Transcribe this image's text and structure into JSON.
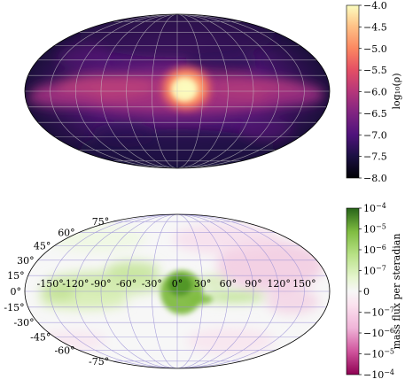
{
  "chart_data": [
    {
      "type": "heatmap",
      "projection": "mollweide",
      "title": "",
      "xlabel": "",
      "ylabel": "",
      "grid": true,
      "lon_tick_labels_shown": false,
      "lat_tick_labels_shown": false,
      "colormap": "magma",
      "colorbar": {
        "label": "log₁₀(ρ)",
        "vmin": -8.0,
        "vmax": -4.0,
        "scale": "linear",
        "ticks": [
          -4.0,
          -4.5,
          -5.0,
          -5.5,
          -6.0,
          -6.5,
          -7.0,
          -7.5,
          -8.0
        ],
        "tick_labels": [
          "−4.0",
          "−4.5",
          "−5.0",
          "−5.5",
          "−6.0",
          "−6.5",
          "−7.0",
          "−7.5",
          "−8.0"
        ]
      },
      "features": [
        {
          "lon": 0,
          "lat": 0,
          "value": -4.1
        },
        {
          "lon": 20,
          "lat": 5,
          "value": -5.6
        },
        {
          "lon": -15,
          "lat": -5,
          "value": -5.8
        },
        {
          "lon": -120,
          "lat": 0,
          "value": -6.6
        },
        {
          "lon": 120,
          "lat": 0,
          "value": -6.7
        },
        {
          "lon": 0,
          "lat": 60,
          "value": -7.6
        },
        {
          "lon": 0,
          "lat": -60,
          "value": -7.6
        }
      ]
    },
    {
      "type": "heatmap",
      "projection": "mollweide",
      "title": "",
      "xlabel": "",
      "ylabel": "",
      "grid": true,
      "colormap": "PiYG",
      "lon_ticks": [
        -150,
        -120,
        -90,
        -60,
        -30,
        0,
        30,
        60,
        90,
        120,
        150
      ],
      "lon_tick_labels": [
        "-150°",
        "-120°",
        "-90°",
        "-60°",
        "-30°",
        "0°",
        "30°",
        "60°",
        "90°",
        "120°",
        "150°"
      ],
      "lat_ticks": [
        75,
        60,
        45,
        30,
        15,
        0,
        -15,
        -30,
        -45,
        -60,
        -75
      ],
      "lat_tick_labels": [
        "75°",
        "60°",
        "45°",
        "30°",
        "15°",
        "0°",
        "-15°",
        "-30°",
        "-45°",
        "-60°",
        "-75°"
      ],
      "colorbar": {
        "label": "mass flux per steradian",
        "vmin": -0.0001,
        "vmax": 0.0001,
        "scale": "symlog",
        "linthresh": 1e-07,
        "ticks": [
          {
            "value": 0.0001,
            "base": "10",
            "exp": "−4"
          },
          {
            "value": 1e-05,
            "base": "10",
            "exp": "−5"
          },
          {
            "value": 1e-06,
            "base": "10",
            "exp": "−6"
          },
          {
            "value": 1e-07,
            "base": "10",
            "exp": "−7"
          },
          {
            "value": 0,
            "base": "0",
            "exp": ""
          },
          {
            "value": -1e-07,
            "base": "−10",
            "exp": "−7"
          },
          {
            "value": -1e-06,
            "base": "−10",
            "exp": "−6"
          },
          {
            "value": -1e-05,
            "base": "−10",
            "exp": "−5"
          },
          {
            "value": -0.0001,
            "base": "−10",
            "exp": "−4"
          }
        ]
      },
      "features": [
        {
          "lon": 0,
          "lat": 5,
          "value": 0.0001
        },
        {
          "lon": 20,
          "lat": -5,
          "value": 2e-06
        },
        {
          "lon": -100,
          "lat": 5,
          "value": 5e-07
        },
        {
          "lon": -140,
          "lat": -8,
          "value": 3e-07
        },
        {
          "lon": 110,
          "lat": 20,
          "value": -5e-07
        },
        {
          "lon": 140,
          "lat": 5,
          "value": -3e-07
        },
        {
          "lon": 60,
          "lat": -50,
          "value": -2e-07
        }
      ]
    }
  ]
}
